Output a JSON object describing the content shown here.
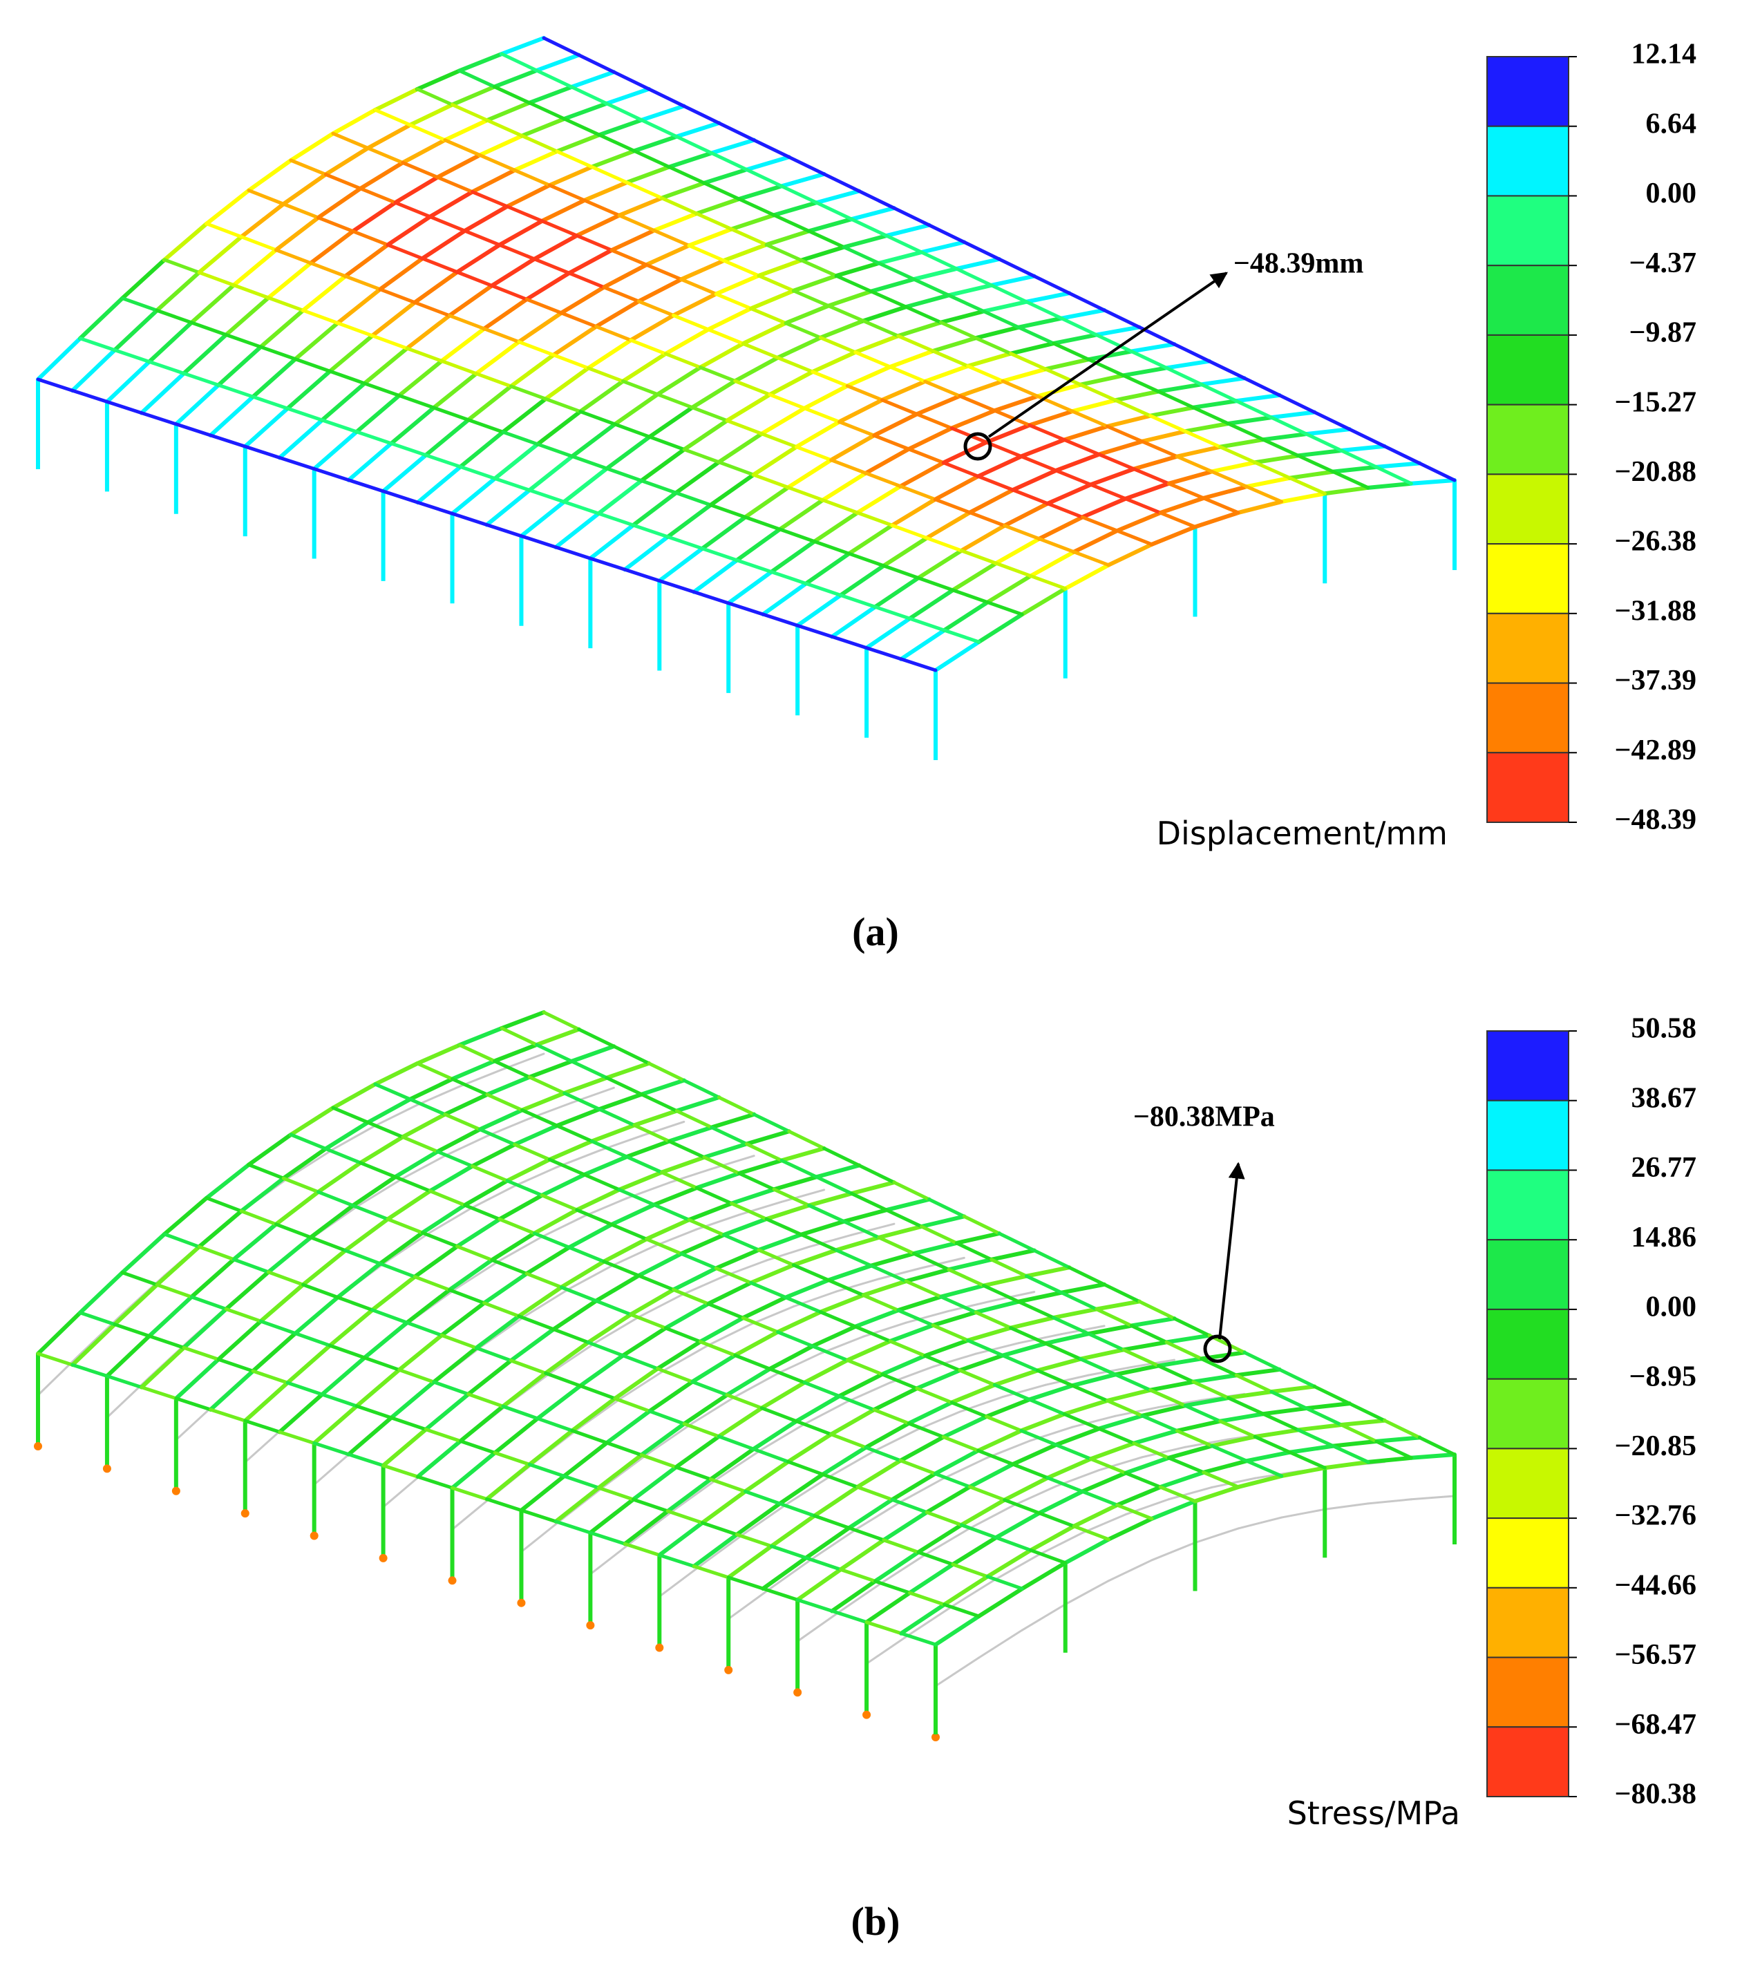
{
  "panels": [
    {
      "annotation": "−48.39mm",
      "legend": {
        "labels": [
          "12.14",
          "6.64",
          "0.00",
          "−4.37",
          "−9.87",
          "−15.27",
          "−20.88",
          "−26.38",
          "−31.88",
          "−37.39",
          "−42.89",
          "−48.39"
        ],
        "colors": [
          "#1c1cff",
          "#00f5ff",
          "#1fff80",
          "#1de84a",
          "#22dd22",
          "#6fee1e",
          "#c8f800",
          "#ffff00",
          "#ffb000",
          "#ff7f00",
          "#ff3a1a"
        ]
      },
      "unit": "Displacement/mm",
      "caption": "(a)"
    },
    {
      "annotation": "−80.38MPa",
      "legend": {
        "labels": [
          "50.58",
          "38.67",
          "26.77",
          "14.86",
          "0.00",
          "−8.95",
          "−20.85",
          "−32.76",
          "−44.66",
          "−56.57",
          "−68.47",
          "−80.38"
        ],
        "colors": [
          "#1c1cff",
          "#00f5ff",
          "#1fff80",
          "#1de84a",
          "#22dd22",
          "#6fee1e",
          "#c8f800",
          "#ffff00",
          "#ffb000",
          "#ff7f00",
          "#ff3a1a"
        ]
      },
      "unit": "Stress/MPa",
      "caption": "(b)"
    }
  ]
}
